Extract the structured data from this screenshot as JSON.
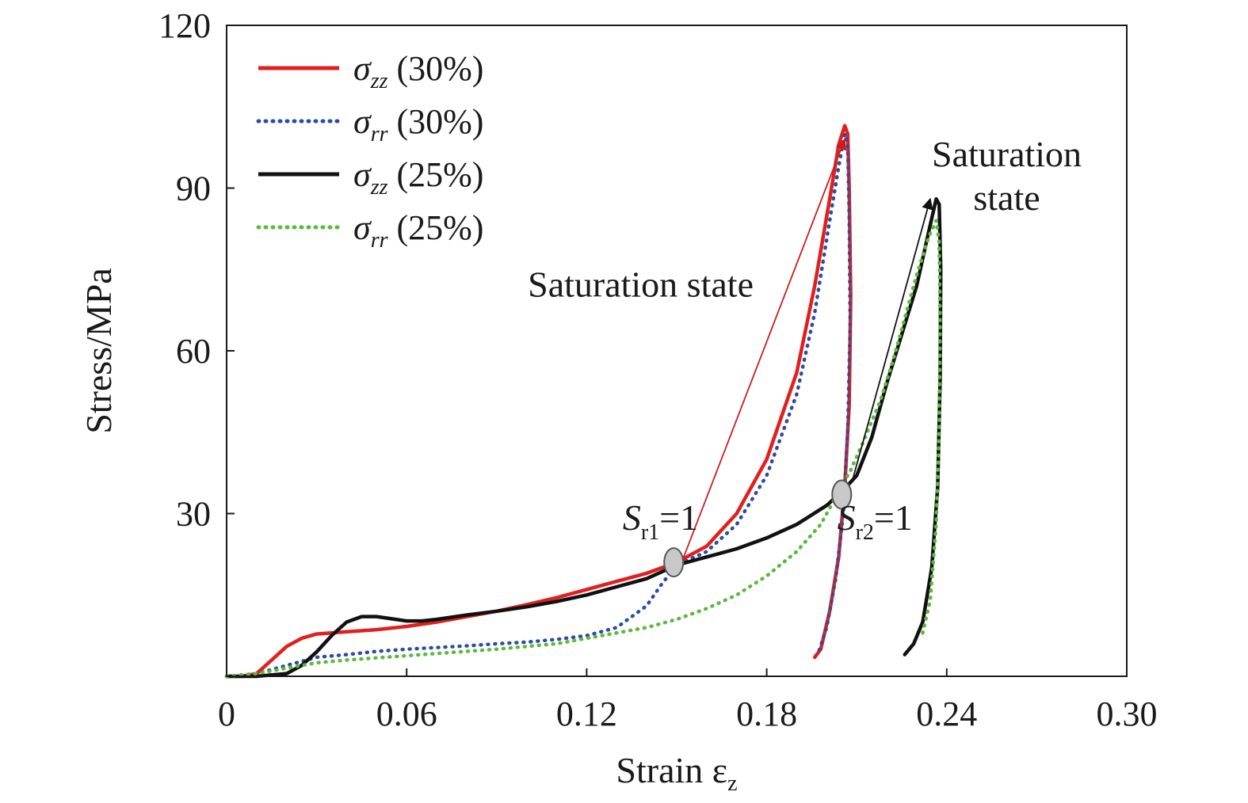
{
  "chart_data": {
    "type": "line",
    "xlabel": "Strain ε",
    "xlabel_sub": "z",
    "ylabel": "Stress/MPa",
    "xlim": [
      0,
      0.3
    ],
    "ylim": [
      0,
      120
    ],
    "xticks": [
      0,
      0.06,
      0.12,
      0.18,
      0.24,
      0.3
    ],
    "xtick_labels": [
      "0",
      "0.06",
      "0.12",
      "0.18",
      "0.24",
      "0.30"
    ],
    "yticks": [
      30,
      60,
      90,
      120
    ],
    "ytick_labels": [
      "30",
      "60",
      "90",
      "120"
    ],
    "grid": false,
    "legend_position": "top-left",
    "series": [
      {
        "name": "σzz (30%)",
        "legend_symbol": "σ",
        "legend_sub": "zz",
        "legend_suffix": " (30%)",
        "color": "#e02020",
        "style": "solid",
        "points": [
          [
            0,
            0
          ],
          [
            0.005,
            0
          ],
          [
            0.01,
            0.5
          ],
          [
            0.015,
            3
          ],
          [
            0.02,
            5.5
          ],
          [
            0.025,
            7
          ],
          [
            0.03,
            7.8
          ],
          [
            0.04,
            8.2
          ],
          [
            0.05,
            8.6
          ],
          [
            0.06,
            9.2
          ],
          [
            0.07,
            10
          ],
          [
            0.08,
            11
          ],
          [
            0.09,
            12
          ],
          [
            0.1,
            13.2
          ],
          [
            0.11,
            14.5
          ],
          [
            0.12,
            16
          ],
          [
            0.13,
            17.5
          ],
          [
            0.14,
            19
          ],
          [
            0.15,
            21
          ],
          [
            0.16,
            24
          ],
          [
            0.17,
            30
          ],
          [
            0.18,
            40
          ],
          [
            0.19,
            56
          ],
          [
            0.196,
            72
          ],
          [
            0.201,
            88
          ],
          [
            0.204,
            98
          ],
          [
            0.206,
            101.5
          ],
          [
            0.207,
            100
          ],
          [
            0.2075,
            90
          ],
          [
            0.208,
            70
          ],
          [
            0.2075,
            50
          ],
          [
            0.206,
            35
          ],
          [
            0.204,
            22
          ],
          [
            0.201,
            12
          ],
          [
            0.198,
            5
          ],
          [
            0.196,
            3.5
          ]
        ]
      },
      {
        "name": "σrr (30%)",
        "legend_symbol": "σ",
        "legend_sub": "rr",
        "legend_suffix": " (30%)",
        "color": "#2e4c9c",
        "style": "dotted",
        "points": [
          [
            0,
            0
          ],
          [
            0.01,
            0.5
          ],
          [
            0.02,
            2
          ],
          [
            0.03,
            3.5
          ],
          [
            0.04,
            4
          ],
          [
            0.05,
            4.6
          ],
          [
            0.06,
            5
          ],
          [
            0.07,
            5.3
          ],
          [
            0.08,
            5.6
          ],
          [
            0.09,
            6
          ],
          [
            0.1,
            6.3
          ],
          [
            0.11,
            6.8
          ],
          [
            0.12,
            7.5
          ],
          [
            0.13,
            9
          ],
          [
            0.14,
            13
          ],
          [
            0.145,
            17
          ],
          [
            0.15,
            20.5
          ],
          [
            0.16,
            23
          ],
          [
            0.17,
            28
          ],
          [
            0.18,
            37
          ],
          [
            0.19,
            52
          ],
          [
            0.196,
            67
          ],
          [
            0.201,
            84
          ],
          [
            0.204,
            94
          ],
          [
            0.206,
            100
          ],
          [
            0.207,
            98
          ],
          [
            0.2075,
            85
          ],
          [
            0.2078,
            65
          ],
          [
            0.207,
            45
          ],
          [
            0.2055,
            30
          ],
          [
            0.203,
            18
          ],
          [
            0.2,
            9
          ],
          [
            0.197,
            4
          ]
        ]
      },
      {
        "name": "σzz (25%)",
        "legend_symbol": "σ",
        "legend_sub": "zz",
        "legend_suffix": " (25%)",
        "color": "#111111",
        "style": "solid",
        "points": [
          [
            0,
            0
          ],
          [
            0.01,
            0
          ],
          [
            0.02,
            0.5
          ],
          [
            0.025,
            2
          ],
          [
            0.03,
            4.5
          ],
          [
            0.035,
            7.5
          ],
          [
            0.04,
            10
          ],
          [
            0.045,
            11
          ],
          [
            0.05,
            11
          ],
          [
            0.055,
            10.6
          ],
          [
            0.06,
            10.2
          ],
          [
            0.065,
            10.2
          ],
          [
            0.07,
            10.5
          ],
          [
            0.08,
            11.3
          ],
          [
            0.09,
            12
          ],
          [
            0.1,
            12.8
          ],
          [
            0.11,
            13.8
          ],
          [
            0.12,
            15
          ],
          [
            0.13,
            16.5
          ],
          [
            0.14,
            18
          ],
          [
            0.15,
            20.5
          ],
          [
            0.16,
            22
          ],
          [
            0.17,
            23.5
          ],
          [
            0.18,
            25.5
          ],
          [
            0.19,
            28
          ],
          [
            0.2,
            31.5
          ],
          [
            0.205,
            34
          ],
          [
            0.21,
            37
          ],
          [
            0.215,
            44
          ],
          [
            0.22,
            54
          ],
          [
            0.225,
            63
          ],
          [
            0.23,
            72
          ],
          [
            0.234,
            82
          ],
          [
            0.2365,
            88
          ],
          [
            0.2375,
            87
          ],
          [
            0.238,
            75
          ],
          [
            0.2378,
            55
          ],
          [
            0.237,
            35
          ],
          [
            0.235,
            20
          ],
          [
            0.232,
            10
          ],
          [
            0.229,
            6
          ],
          [
            0.226,
            4
          ]
        ]
      },
      {
        "name": "σrr (25%)",
        "legend_symbol": "σ",
        "legend_sub": "rr",
        "legend_suffix": " (25%)",
        "color": "#5cb840",
        "style": "dotted",
        "points": [
          [
            0,
            0
          ],
          [
            0.01,
            0.5
          ],
          [
            0.02,
            1.5
          ],
          [
            0.03,
            2.5
          ],
          [
            0.04,
            3
          ],
          [
            0.05,
            3.4
          ],
          [
            0.06,
            3.8
          ],
          [
            0.07,
            4.2
          ],
          [
            0.08,
            4.6
          ],
          [
            0.09,
            5
          ],
          [
            0.1,
            5.5
          ],
          [
            0.11,
            6
          ],
          [
            0.12,
            7
          ],
          [
            0.13,
            8
          ],
          [
            0.14,
            9
          ],
          [
            0.15,
            10.5
          ],
          [
            0.16,
            12.5
          ],
          [
            0.17,
            15
          ],
          [
            0.18,
            18.5
          ],
          [
            0.19,
            23
          ],
          [
            0.198,
            28
          ],
          [
            0.203,
            33
          ],
          [
            0.208,
            38
          ],
          [
            0.212,
            43
          ],
          [
            0.218,
            51
          ],
          [
            0.222,
            58
          ],
          [
            0.226,
            66
          ],
          [
            0.23,
            74
          ],
          [
            0.234,
            81
          ],
          [
            0.2365,
            84
          ],
          [
            0.2375,
            80
          ],
          [
            0.2378,
            65
          ],
          [
            0.2375,
            45
          ],
          [
            0.2365,
            28
          ],
          [
            0.2345,
            14
          ],
          [
            0.232,
            8
          ]
        ]
      }
    ],
    "annotations": [
      {
        "label": "Saturation state",
        "at": [
          0.138,
          70
        ]
      },
      {
        "label": "Saturation",
        "at": [
          0.26,
          94
        ]
      },
      {
        "label": "state",
        "at": [
          0.26,
          86
        ]
      },
      {
        "label": "S",
        "sub": "r1",
        "suffix": "=1",
        "at": [
          0.132,
          27
        ]
      },
      {
        "label": "S",
        "sub": "r2",
        "suffix": "=1",
        "at": [
          0.2035,
          27
        ]
      }
    ],
    "arrows": [
      {
        "from": [
          0.152,
          21.5
        ],
        "to": [
          0.206,
          99
        ],
        "color": "#c81e1e"
      },
      {
        "from": [
          0.2085,
          36
        ],
        "to": [
          0.2345,
          88
        ],
        "color": "#111111"
      }
    ],
    "markers": [
      {
        "at": [
          0.149,
          21
        ],
        "label": "S_r1"
      },
      {
        "at": [
          0.205,
          33.5
        ],
        "label": "S_r2"
      }
    ]
  }
}
